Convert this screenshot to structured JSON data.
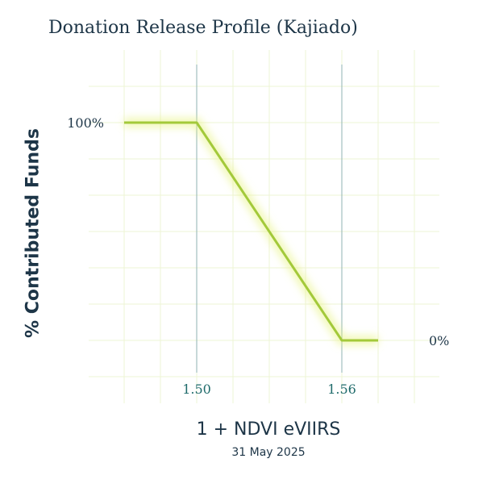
{
  "chart_data": {
    "type": "line",
    "title": "Donation Release Profile (Kajiado)",
    "ylabel": "% Contributed Funds",
    "xlabel": "1 + NDVI eVIIRS",
    "subtitle": "31 May 2025",
    "x_ticks": [
      {
        "value": 1.5,
        "label": "1.50"
      },
      {
        "value": 1.56,
        "label": "1.56"
      }
    ],
    "y_ticks": [
      {
        "value": 100,
        "label": "100%"
      },
      {
        "value": 0,
        "label": "0%"
      }
    ],
    "xlim": [
      1.47,
      1.58
    ],
    "ylim": [
      -10,
      110
    ],
    "grid": true,
    "series": [
      {
        "x": [
          1.47,
          1.5,
          1.56,
          1.575
        ],
        "y": [
          100,
          100,
          0,
          0
        ],
        "color": "#a3c93a"
      }
    ],
    "colors": {
      "line": "#a3c93a",
      "line_glow": "#e6f27a",
      "grid": "#eef4d4",
      "threshold_line": "#8fb3b3",
      "x_tick_text": "#1f6b6b",
      "y_tick_text": "#1d3547",
      "text": "#1d3547"
    }
  }
}
